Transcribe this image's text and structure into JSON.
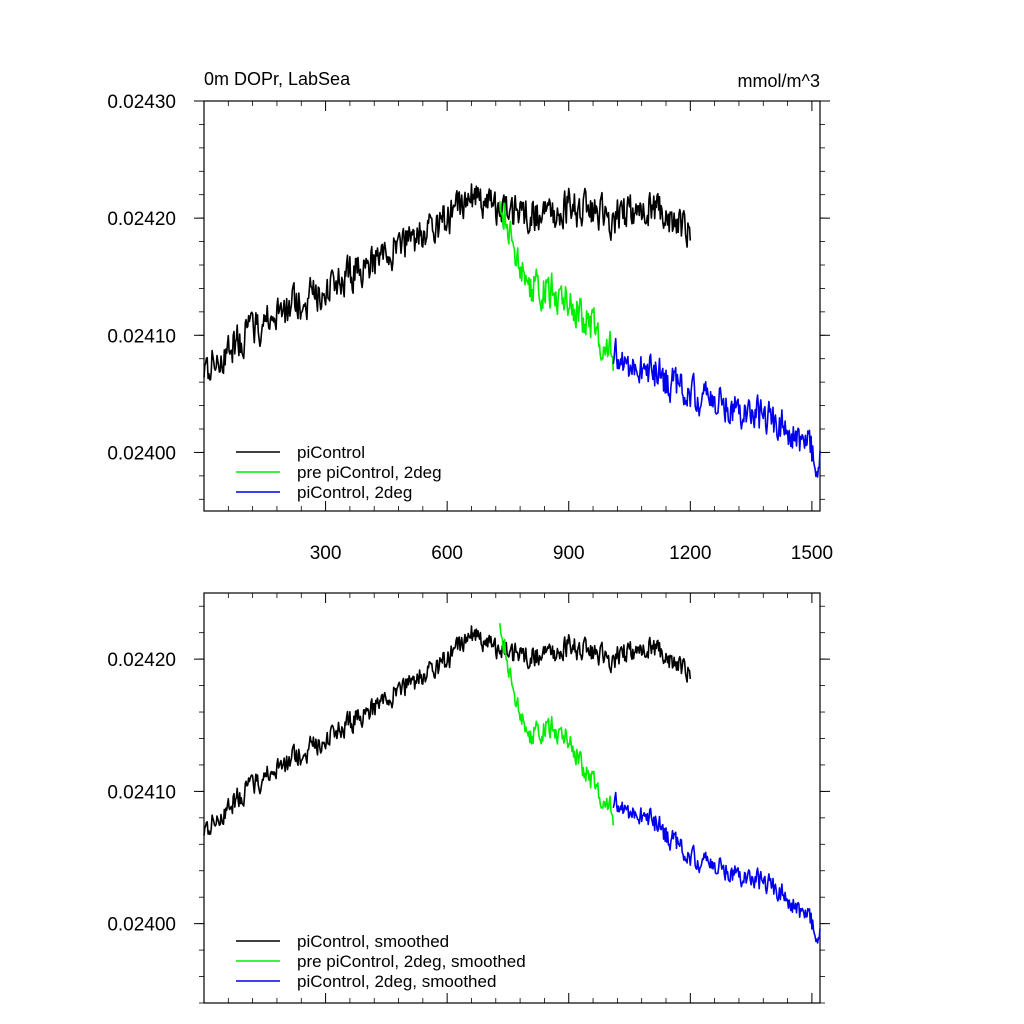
{
  "chart_data": [
    {
      "type": "line",
      "title": "0m DOPr, LabSea",
      "units": "mmol/m^3",
      "xlim": [
        0,
        1520
      ],
      "ylim": [
        0.02395,
        0.0243
      ],
      "x_ticks": [
        300,
        600,
        900,
        1200,
        1500
      ],
      "x_tick_labels": [
        "300",
        "600",
        "900",
        "1200",
        "1500"
      ],
      "y_ticks": [
        0.024,
        0.0241,
        0.0242,
        0.0243
      ],
      "y_tick_labels": [
        "0.02400",
        "0.02410",
        "0.02420",
        "0.02430"
      ],
      "legend": [
        "piControl",
        "pre piControl, 2deg",
        "piControl, 2deg"
      ],
      "legend_placement": "bottom-left",
      "series": [
        {
          "name": "piControl",
          "color": "#000000",
          "x_start": 0,
          "x_end": 1200,
          "x": [
            0,
            100,
            200,
            300,
            400,
            500,
            600,
            660,
            700,
            800,
            900,
            1000,
            1100,
            1200
          ],
          "y": [
            0.02407,
            0.0241,
            0.02412,
            0.02414,
            0.02416,
            0.02418,
            0.0242,
            0.02422,
            0.02421,
            0.0242,
            0.02421,
            0.0242,
            0.02421,
            0.02419
          ],
          "noise": 2.2e-05
        },
        {
          "name": "pre piControl, 2deg",
          "color": "#00ee00",
          "x_start": 730,
          "x_end": 1010,
          "x": [
            730,
            760,
            800,
            850,
            900,
            950,
            1000,
            1010
          ],
          "y": [
            0.02422,
            0.02418,
            0.02414,
            0.02414,
            0.02413,
            0.02411,
            0.02409,
            0.02408
          ],
          "noise": 2.2e-05
        },
        {
          "name": "piControl, 2deg",
          "color": "#0000ee",
          "x_start": 1010,
          "x_end": 1520,
          "x": [
            1010,
            1100,
            1200,
            1300,
            1400,
            1500,
            1520
          ],
          "y": [
            0.02408,
            0.02407,
            0.02405,
            0.02404,
            0.02403,
            0.024,
            0.02399
          ],
          "noise": 2.2e-05
        }
      ]
    },
    {
      "type": "line",
      "title": "",
      "xlim": [
        0,
        1520
      ],
      "ylim": [
        0.02394,
        0.02425
      ],
      "x_ticks": [
        300,
        600,
        900,
        1200,
        1500
      ],
      "y_ticks": [
        0.024,
        0.0241,
        0.0242
      ],
      "y_tick_labels": [
        "0.02400",
        "0.02410",
        "0.02420"
      ],
      "legend": [
        "piControl, smoothed",
        "pre piControl, 2deg, smoothed",
        "piControl, 2deg, smoothed"
      ],
      "legend_placement": "bottom-left",
      "series": [
        {
          "name": "piControl, smoothed",
          "color": "#000000",
          "x_start": 0,
          "x_end": 1200,
          "x": [
            0,
            100,
            200,
            300,
            400,
            500,
            600,
            660,
            700,
            800,
            900,
            1000,
            1100,
            1200
          ],
          "y": [
            0.02407,
            0.0241,
            0.02412,
            0.02414,
            0.02416,
            0.02418,
            0.0242,
            0.02422,
            0.02421,
            0.0242,
            0.02421,
            0.0242,
            0.02421,
            0.02419
          ],
          "noise": 1.2e-05
        },
        {
          "name": "pre piControl, 2deg, smoothed",
          "color": "#00ee00",
          "x_start": 730,
          "x_end": 1010,
          "x": [
            730,
            760,
            800,
            850,
            900,
            950,
            1000,
            1010
          ],
          "y": [
            0.02423,
            0.02418,
            0.02414,
            0.02415,
            0.02414,
            0.02411,
            0.02409,
            0.02408
          ],
          "noise": 1.2e-05
        },
        {
          "name": "piControl, 2deg, smoothed",
          "color": "#0000ee",
          "x_start": 1010,
          "x_end": 1520,
          "x": [
            1010,
            1100,
            1200,
            1300,
            1400,
            1500,
            1520
          ],
          "y": [
            0.02409,
            0.02408,
            0.02405,
            0.02404,
            0.02403,
            0.024,
            0.02399
          ],
          "noise": 1.2e-05
        }
      ]
    }
  ]
}
